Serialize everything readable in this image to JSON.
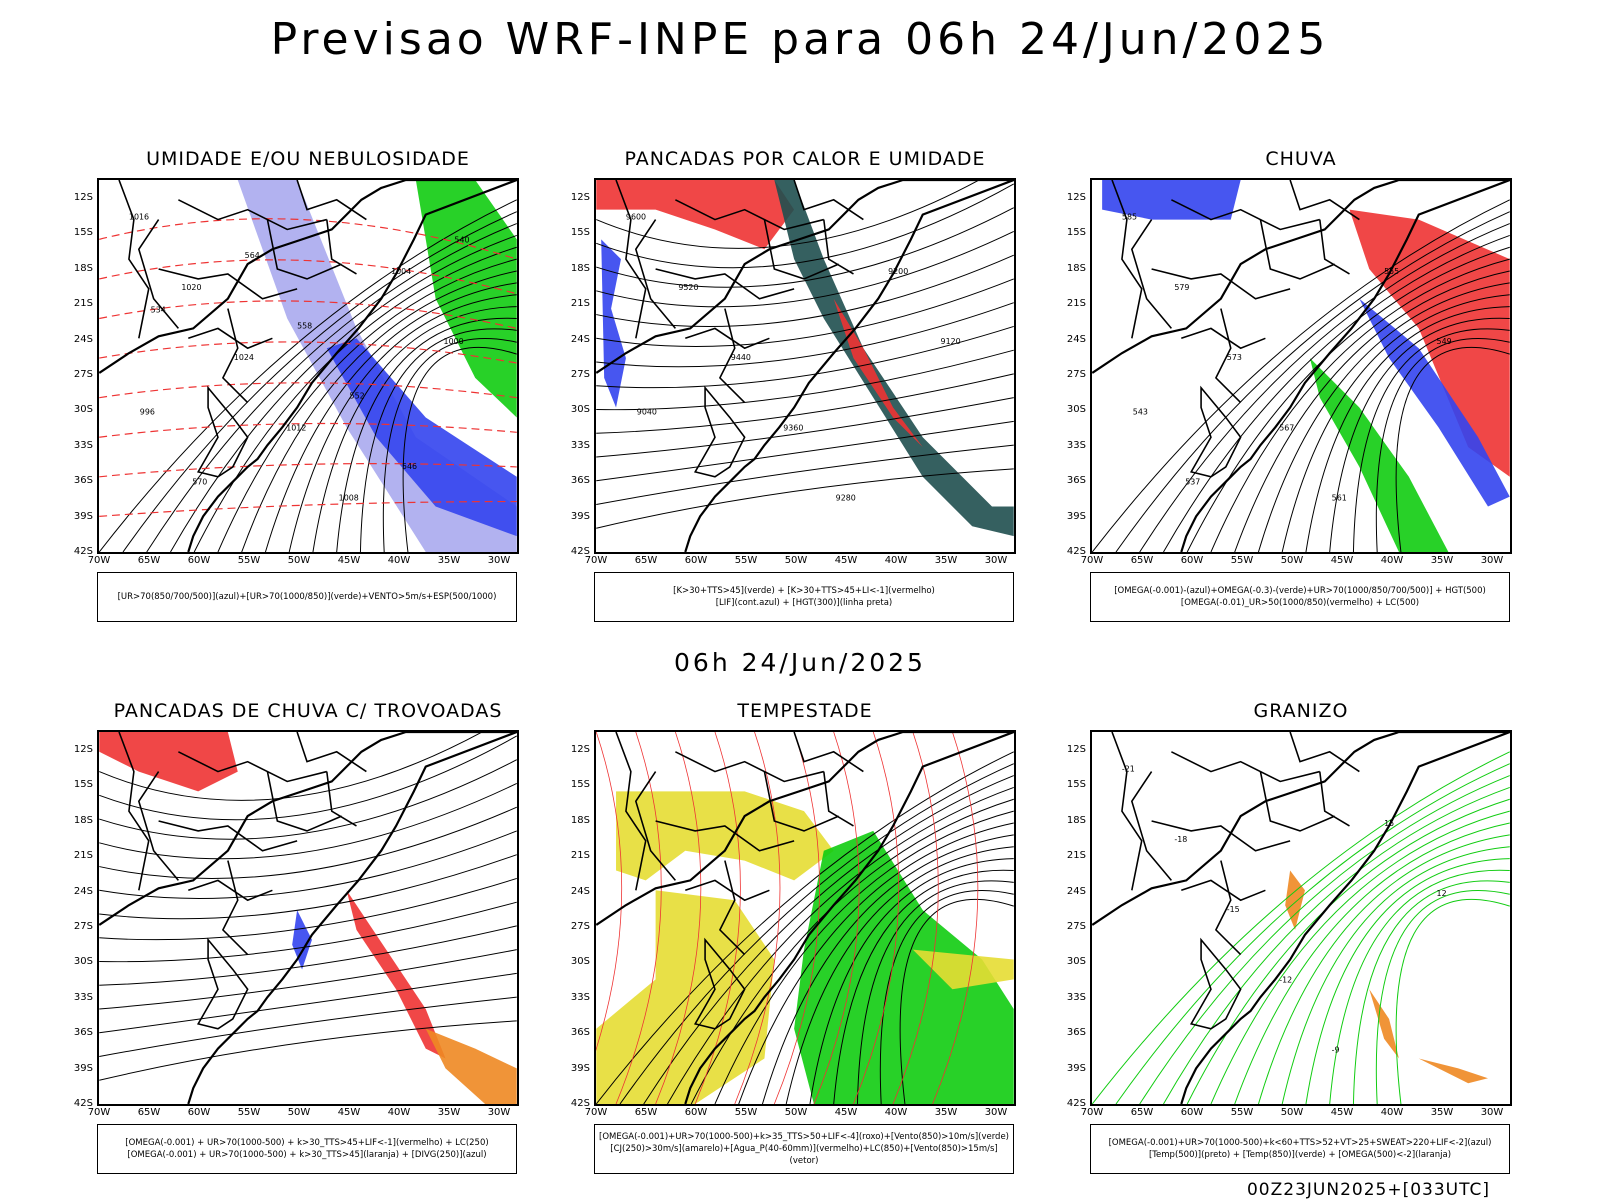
{
  "header": {
    "title": "Previsao WRF-INPE  para 06h 24/Jun/2025"
  },
  "mid_date": "06h 24/Jun/2025",
  "footer_stamp": "00Z23JUN2025+[033UTC]",
  "axes": {
    "lat_labels": [
      "12S",
      "15S",
      "18S",
      "21S",
      "24S",
      "27S",
      "30S",
      "33S",
      "36S",
      "39S",
      "42S"
    ],
    "lon_labels": [
      "70W",
      "65W",
      "60W",
      "55W",
      "50W",
      "45W",
      "40W",
      "35W",
      "30W"
    ]
  },
  "colors": {
    "blue": "#3344ee",
    "lavender": "#aaaaee",
    "green": "#11cc11",
    "red": "#ee3333",
    "orange": "#ee8822",
    "yellow": "#e6dd33",
    "darkteal": "#1f4f4f",
    "black": "#000000"
  },
  "panels": [
    {
      "title": "UMIDADE E/OU NEBULOSIDADE",
      "legend": [
        "[UR>70(850/700/500)](azul)+[UR>70(1000/850)](verde)+VENTO>5m/s+ESP(500/1000)"
      ],
      "labels": [
        "1016",
        "1020",
        "1024",
        "1012",
        "1008",
        "1004",
        "1000",
        "996",
        "570",
        "564",
        "558",
        "552",
        "546",
        "540",
        "534"
      ]
    },
    {
      "title": "PANCADAS POR CALOR E UMIDADE",
      "legend": [
        "[K>30+TTS>45](verde) + [K>30+TTS>45+LI<-1](vermelho)",
        "[LIF](cont.azul) + [HGT(300)](linha preta)"
      ],
      "labels": [
        "9600",
        "9520",
        "9440",
        "9360",
        "9280",
        "9200",
        "9120",
        "9040"
      ]
    },
    {
      "title": "CHUVA",
      "legend": [
        "[OMEGA(-0.001)-(azul)+OMEGA(-0.3)-(verde)+UR>70(1000/850/700/500)] + HGT(500)",
        "[OMEGA(-0.01)_UR>50(1000/850)(vermelho) + LC(500)"
      ],
      "labels": [
        "585",
        "579",
        "573",
        "567",
        "561",
        "555",
        "549",
        "543",
        "537"
      ]
    },
    {
      "title": "PANCADAS DE CHUVA C/ TROVOADAS",
      "legend": [
        "[OMEGA(-0.001) + UR>70(1000-500) + k>30_TTS>45+LIF<-1](vermelho) + LC(250)",
        "[OMEGA(-0.001) + UR>70(1000-500) + k>30_TTS>45](laranja) + [DIVG(250)](azul)"
      ],
      "labels": []
    },
    {
      "title": "TEMPESTADE",
      "legend": [
        "[OMEGA(-0.001)+UR>70(1000-500)+k>35_TTS>50+LIF<-4](roxo)+[Vento(850)>10m/s](verde)",
        "[CJ(250)>30m/s](amarelo)+[Agua_P(40-60mm)](vermelho)+LC(850)+[Vento(850)>15m/s](vetor)"
      ],
      "labels": []
    },
    {
      "title": "GRANIZO",
      "legend": [
        "[OMEGA(-0.001)+UR>70(1000-500)+k<60+TTS>52+VT>25+SWEAT>220+LIF<-2](azul)",
        "[Temp(500)](preto) + [Temp(850)](verde) + [OMEGA(500)<-2](laranja)"
      ],
      "labels": [
        "-21",
        "-18",
        "-15",
        "-12",
        "-9",
        "15",
        "12"
      ]
    }
  ]
}
